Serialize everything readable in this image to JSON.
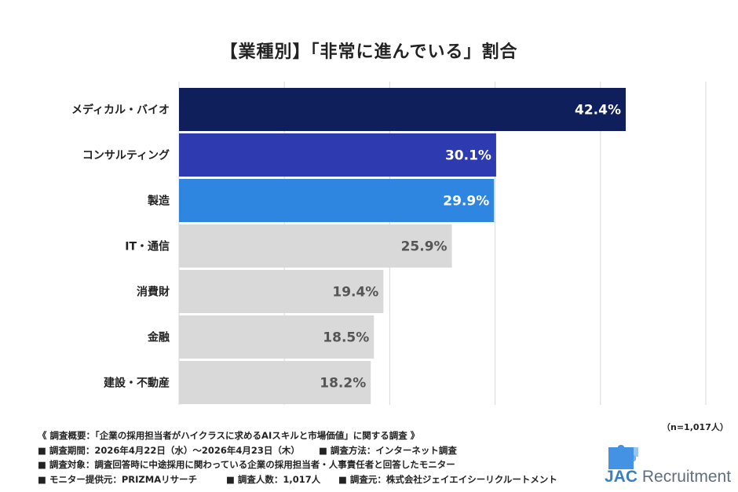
{
  "title": "【業種別】「非常に進んでいる」割合",
  "sample_note": "（n=1,017人）",
  "colors": {
    "highlight_1": "#0f1f5c",
    "highlight_2": "#2e3bb0",
    "highlight_3": "#2f86e0",
    "other": "#d9d9d9",
    "value_light": "#ffffff",
    "value_dark": "#555555",
    "gridline": "#d9d9d9"
  },
  "chart_data": {
    "type": "bar",
    "orientation": "horizontal",
    "categories": [
      "メディカル・バイオ",
      "コンサルティング",
      "製造",
      "IT・通信",
      "消費財",
      "金融",
      "建設・不動産"
    ],
    "values": [
      42.4,
      30.1,
      29.9,
      25.9,
      19.4,
      18.5,
      18.2
    ],
    "value_labels": [
      "42.4%",
      "30.1%",
      "29.9%",
      "25.9%",
      "19.4%",
      "18.5%",
      "18.2%"
    ],
    "bar_colors": [
      "highlight_1",
      "highlight_2",
      "highlight_3",
      "other",
      "other",
      "other",
      "other"
    ],
    "xlim": [
      0,
      50
    ],
    "grid": true,
    "gridlines_at": [
      10,
      20,
      30,
      40,
      50
    ],
    "title": "【業種別】「非常に進んでいる」割合"
  },
  "footnotes": {
    "line1": "《 調査概要：「企業の採用担当者がハイクラスに求めるAIスキルと市場価値」に関する調査 》",
    "line2a": "■ 調査期間：2026年4月22日（水）〜2026年4月23日（木）",
    "line2b": "■ 調査方法：インターネット調査",
    "line3": "■ 調査対象：調査回答時に中途採用に関わっている企業の採用担当者・人事責任者と回答したモニター",
    "line4a": "■ モニター提供元：PRIZMAリサーチ",
    "line4b": "■ 調査人数：1,017人",
    "line4c": "■ 調査元：株式会社ジェイエイシーリクルートメント"
  },
  "logo": {
    "text_jac": "JAC",
    "text_rest": "Recruitment",
    "icon": "puzzle-piece-icon"
  }
}
